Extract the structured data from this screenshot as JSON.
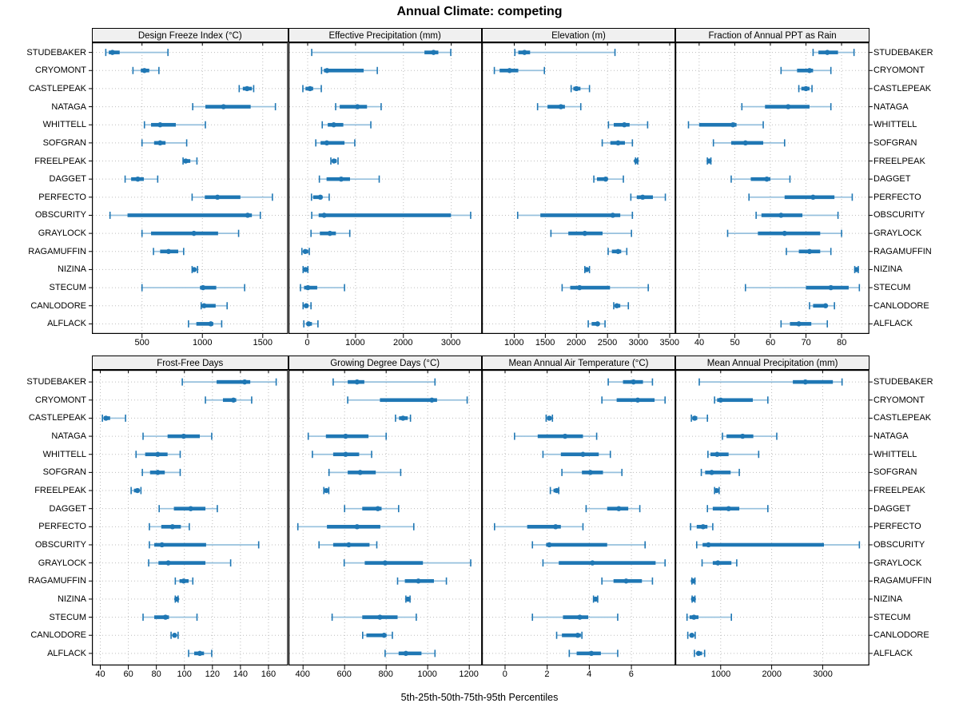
{
  "colors": {
    "accent": "#1f77b4",
    "whisker": "#96c0dd",
    "grid": "#bdbdbd",
    "header_bg": "#f0f0f0",
    "border": "#000000",
    "background": "#ffffff"
  },
  "chart_data": {
    "type": "dot-whisker-trellis",
    "title": "Annual Climate: competing",
    "xlabel": "5th-25th-50th-75th-95th Percentiles",
    "percentile_order": [
      "5th",
      "25th",
      "50th",
      "75th",
      "95th"
    ],
    "grid": "dotted",
    "layout": "2 rows x 4 columns, site labels on both left and right",
    "sites": [
      "STUDEBAKER",
      "CRYOMONT",
      "CASTLEPEAK",
      "NATAGA",
      "WHITTELL",
      "SOFGRAN",
      "FREELPEAK",
      "DAGGET",
      "PERFECTO",
      "OBSCURITY",
      "GRAYLOCK",
      "RAGAMUFFIN",
      "NIZINA",
      "STECUM",
      "CANLODORE",
      "ALFLACK"
    ],
    "panels": [
      {
        "title": "Design Freeze Index (°C)",
        "xlim": [
          85,
          1710
        ],
        "ticks": [
          500,
          1000,
          1500
        ],
        "values": [
          [
            200,
            225,
            255,
            315,
            715
          ],
          [
            425,
            490,
            520,
            560,
            640
          ],
          [
            1305,
            1335,
            1370,
            1410,
            1425
          ],
          [
            920,
            1025,
            1175,
            1400,
            1605
          ],
          [
            520,
            575,
            650,
            780,
            1025
          ],
          [
            500,
            600,
            650,
            695,
            870
          ],
          [
            840,
            852,
            862,
            900,
            955
          ],
          [
            360,
            410,
            465,
            515,
            630
          ],
          [
            915,
            1020,
            1125,
            1315,
            1580
          ],
          [
            235,
            380,
            1375,
            1410,
            1480
          ],
          [
            500,
            575,
            930,
            1130,
            1300
          ],
          [
            595,
            650,
            720,
            800,
            845
          ],
          [
            915,
            925,
            932,
            945,
            960
          ],
          [
            500,
            980,
            1005,
            1115,
            1350
          ],
          [
            990,
            997,
            1015,
            1110,
            1205
          ],
          [
            885,
            950,
            1070,
            1090,
            1160
          ]
        ]
      },
      {
        "title": "Effective Precipitation (mm)",
        "xlim": [
          -400,
          3645
        ],
        "ticks": [
          0,
          1000,
          2000,
          3000
        ],
        "values": [
          [
            85,
            2440,
            2630,
            2730,
            2990
          ],
          [
            290,
            340,
            405,
            1170,
            1455
          ],
          [
            -100,
            -45,
            50,
            115,
            285
          ],
          [
            585,
            670,
            1040,
            1240,
            1535
          ],
          [
            305,
            420,
            545,
            745,
            1320
          ],
          [
            170,
            270,
            400,
            770,
            985
          ],
          [
            485,
            515,
            550,
            605,
            635
          ],
          [
            245,
            395,
            700,
            885,
            1495
          ],
          [
            80,
            115,
            265,
            310,
            450
          ],
          [
            85,
            230,
            345,
            2995,
            3405
          ],
          [
            70,
            255,
            465,
            590,
            880
          ],
          [
            -120,
            -90,
            -50,
            15,
            35
          ],
          [
            -95,
            -60,
            -45,
            -10,
            5
          ],
          [
            -150,
            -75,
            5,
            200,
            770
          ],
          [
            -95,
            -50,
            -30,
            15,
            70
          ],
          [
            -80,
            -20,
            20,
            90,
            215
          ]
        ]
      },
      {
        "title": "Elevation (m)",
        "xlim": [
          480,
          3595
        ],
        "ticks": [
          1000,
          1500,
          2000,
          2500,
          3000,
          3500
        ],
        "values": [
          [
            1010,
            1065,
            1165,
            1255,
            2620
          ],
          [
            680,
            765,
            925,
            1065,
            1485
          ],
          [
            1915,
            1950,
            2000,
            2065,
            2210
          ],
          [
            1375,
            1535,
            1750,
            1815,
            2070
          ],
          [
            2515,
            2600,
            2770,
            2855,
            3145
          ],
          [
            2415,
            2545,
            2670,
            2780,
            2900
          ],
          [
            2950,
            2958,
            2963,
            2972,
            2985
          ],
          [
            2280,
            2330,
            2470,
            2500,
            2755
          ],
          [
            2875,
            2970,
            3065,
            3230,
            3430
          ],
          [
            1055,
            1420,
            2585,
            2705,
            2900
          ],
          [
            1590,
            1870,
            2135,
            2420,
            2885
          ],
          [
            2510,
            2570,
            2670,
            2720,
            2810
          ],
          [
            2135,
            2155,
            2165,
            2180,
            2210
          ],
          [
            1770,
            1900,
            2050,
            2540,
            3155
          ],
          [
            2600,
            2620,
            2650,
            2705,
            2835
          ],
          [
            2190,
            2245,
            2340,
            2370,
            2460
          ]
        ]
      },
      {
        "title": "Fraction of Annual PPT as Rain",
        "xlim": [
          33.3,
          87.8
        ],
        "ticks": [
          40,
          50,
          60,
          70,
          80
        ],
        "values": [
          [
            72,
            73.5,
            76,
            79,
            83.5
          ],
          [
            63,
            67.5,
            71,
            72,
            77
          ],
          [
            68,
            68.7,
            70,
            71,
            71.7
          ],
          [
            52,
            58.5,
            65,
            71,
            77
          ],
          [
            37,
            40,
            49.5,
            50.5,
            58
          ],
          [
            44,
            49,
            53,
            58,
            64
          ],
          [
            42.3,
            42.6,
            42.8,
            43,
            43.3
          ],
          [
            49,
            54.5,
            59,
            60,
            65.5
          ],
          [
            54,
            64,
            72,
            78,
            83
          ],
          [
            56,
            57.5,
            63,
            69,
            79
          ],
          [
            48,
            56.5,
            64,
            74,
            80
          ],
          [
            64.5,
            68,
            71,
            74,
            77
          ],
          [
            83.7,
            84,
            84.2,
            84.4,
            84.7
          ],
          [
            53,
            70,
            77,
            82,
            85
          ],
          [
            71,
            72,
            75.5,
            76,
            78
          ],
          [
            63,
            65.5,
            68,
            71.5,
            76
          ]
        ]
      },
      {
        "title": "Frost-Free Days",
        "xlim": [
          34,
          174
        ],
        "ticks": [
          40,
          60,
          80,
          100,
          120,
          140,
          160
        ],
        "values": [
          [
            98.5,
            123,
            143,
            147,
            165.5
          ],
          [
            115,
            127.5,
            135,
            137,
            148
          ],
          [
            41.5,
            42.5,
            44,
            47,
            58
          ],
          [
            70.5,
            88,
            99.5,
            111,
            119.5
          ],
          [
            65.5,
            72,
            81,
            88,
            97
          ],
          [
            70,
            75.5,
            81,
            86,
            97
          ],
          [
            62,
            64,
            66.5,
            68,
            69
          ],
          [
            82,
            92.5,
            104.5,
            115,
            123.5
          ],
          [
            75,
            83.5,
            91.5,
            97.5,
            103.5
          ],
          [
            75,
            78.5,
            84,
            115.5,
            153
          ],
          [
            74.5,
            81.5,
            88.5,
            115,
            133
          ],
          [
            93.5,
            96.5,
            99.5,
            103,
            106
          ],
          [
            93.5,
            94,
            94.5,
            95,
            95.5
          ],
          [
            70.5,
            78.5,
            86.5,
            89,
            109
          ],
          [
            90.5,
            92,
            93,
            93.5,
            95.5
          ],
          [
            103,
            107,
            111,
            114,
            119.5
          ]
        ]
      },
      {
        "title": "Growing Degree Days (°C)",
        "xlim": [
          330,
          1262
        ],
        "ticks": [
          400,
          600,
          800,
          1000,
          1200
        ],
        "values": [
          [
            545,
            615,
            660,
            695,
            1035
          ],
          [
            615,
            770,
            1020,
            1045,
            1190
          ],
          [
            845,
            862,
            881,
            904,
            917
          ],
          [
            425,
            510,
            605,
            715,
            800
          ],
          [
            445,
            545,
            605,
            670,
            730
          ],
          [
            525,
            615,
            675,
            750,
            870
          ],
          [
            500,
            505,
            512,
            518,
            524
          ],
          [
            600,
            685,
            760,
            778,
            860
          ],
          [
            375,
            515,
            660,
            772,
            933
          ],
          [
            477,
            545,
            620,
            720,
            755
          ],
          [
            598,
            697,
            795,
            977,
            1207
          ],
          [
            855,
            890,
            955,
            1030,
            1090
          ],
          [
            895,
            900,
            905,
            910,
            915
          ],
          [
            540,
            685,
            770,
            855,
            945
          ],
          [
            687,
            705,
            790,
            802,
            830
          ],
          [
            795,
            860,
            895,
            970,
            1035
          ]
        ]
      },
      {
        "title": "Mean Annual Air Temperature (°C)",
        "xlim": [
          -1.1,
          8.1
        ],
        "ticks": [
          0,
          2,
          4,
          6
        ],
        "values": [
          [
            4.9,
            5.6,
            6.1,
            6.55,
            7.0
          ],
          [
            4.6,
            5.3,
            6.3,
            7.1,
            7.6
          ],
          [
            1.95,
            2.0,
            2.1,
            2.2,
            2.25
          ],
          [
            0.45,
            1.55,
            2.85,
            3.7,
            4.35
          ],
          [
            1.8,
            2.65,
            3.7,
            4.45,
            5.0
          ],
          [
            2.7,
            3.65,
            4.05,
            4.65,
            5.55
          ],
          [
            2.15,
            2.3,
            2.45,
            2.5,
            2.55
          ],
          [
            3.85,
            4.85,
            5.4,
            5.85,
            6.4
          ],
          [
            -0.5,
            1.05,
            2.4,
            2.65,
            3.7
          ],
          [
            1.3,
            1.95,
            2.1,
            4.85,
            6.65
          ],
          [
            1.8,
            2.55,
            4.15,
            7.15,
            7.6
          ],
          [
            4.6,
            5.15,
            5.75,
            6.5,
            7.0
          ],
          [
            4.2,
            4.25,
            4.3,
            4.35,
            4.4
          ],
          [
            1.3,
            2.75,
            3.55,
            3.95,
            5.35
          ],
          [
            2.45,
            2.7,
            3.45,
            3.6,
            3.65
          ],
          [
            3.05,
            3.4,
            4.1,
            4.55,
            5.35
          ]
        ]
      },
      {
        "title": "Mean Annual Precipitation (mm)",
        "xlim": [
          110,
          3915
        ],
        "ticks": [
          1000,
          2000,
          3000
        ],
        "values": [
          [
            580,
            2415,
            2660,
            3200,
            3380
          ],
          [
            880,
            930,
            1000,
            1630,
            1925
          ],
          [
            425,
            445,
            490,
            540,
            740
          ],
          [
            1035,
            1115,
            1430,
            1640,
            2100
          ],
          [
            750,
            800,
            930,
            1155,
            1745
          ],
          [
            620,
            695,
            825,
            1195,
            1365
          ],
          [
            880,
            905,
            920,
            935,
            970
          ],
          [
            740,
            845,
            1155,
            1365,
            1925
          ],
          [
            410,
            530,
            655,
            740,
            845
          ],
          [
            530,
            645,
            760,
            3025,
            3720
          ],
          [
            635,
            845,
            945,
            1210,
            1315
          ],
          [
            435,
            450,
            460,
            475,
            495
          ],
          [
            440,
            455,
            465,
            475,
            495
          ],
          [
            340,
            390,
            475,
            565,
            1210
          ],
          [
            355,
            395,
            435,
            470,
            500
          ],
          [
            485,
            530,
            565,
            635,
            685
          ]
        ]
      }
    ]
  }
}
